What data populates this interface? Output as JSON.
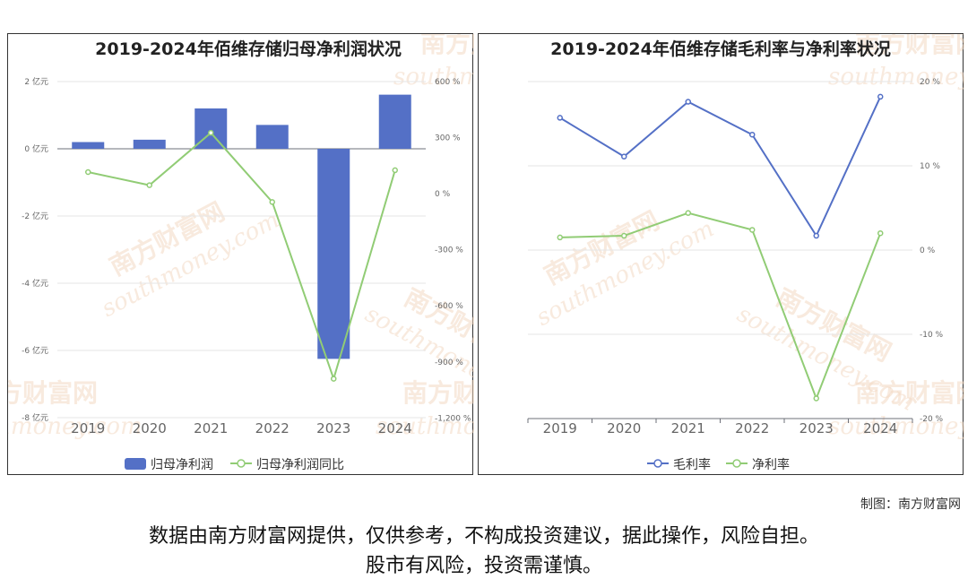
{
  "footer": {
    "credit": "制图：南方财富网",
    "disclaimer_line1": "数据由南方财富网提供，仅供参考，不构成投资建议，据此操作，风险自担。",
    "disclaimer_line2": "股市有风险，投资需谨慎。"
  },
  "watermark": {
    "cn": "南方财富网",
    "en": "southmoney.com"
  },
  "colors": {
    "bar": "#5470c6",
    "line_green": "#91cc75",
    "line_blue": "#5470c6"
  },
  "chart_data": [
    {
      "type": "bar",
      "title": "2019-2024年佰维存储归母净利润状况",
      "categories": [
        "2019",
        "2020",
        "2021",
        "2022",
        "2023",
        "2024"
      ],
      "series": [
        {
          "name": "归母净利润",
          "type": "bar",
          "axis": "left",
          "values": [
            0.2,
            0.27,
            1.2,
            0.71,
            -6.25,
            1.61
          ]
        },
        {
          "name": "归母净利润同比",
          "type": "line",
          "axis": "right",
          "values": [
            115,
            45,
            325,
            -45,
            -990,
            125
          ]
        }
      ],
      "y_left": {
        "ticks": [
          2,
          0,
          -2,
          -4,
          -6,
          -8
        ],
        "tick_labels": [
          "2 亿元",
          "0 亿元",
          "-2 亿元",
          "-4 亿元",
          "-6 亿元",
          "-8 亿元"
        ],
        "range": [
          -8,
          2
        ]
      },
      "y_right": {
        "ticks": [
          600,
          300,
          0,
          -300,
          -600,
          -900,
          -1200
        ],
        "tick_labels": [
          "600 %",
          "300 %",
          "0 %",
          "-300 %",
          "-600 %",
          "-900 %",
          "-1,200 %"
        ],
        "range": [
          -1200,
          600
        ]
      },
      "legend": "bottom"
    },
    {
      "type": "line",
      "title": "2019-2024年佰维存储毛利率与净利率状况",
      "categories": [
        "2019",
        "2020",
        "2021",
        "2022",
        "2023",
        "2024"
      ],
      "series": [
        {
          "name": "毛利率",
          "values": [
            15.7,
            11.1,
            17.6,
            13.7,
            1.7,
            18.2
          ]
        },
        {
          "name": "净利率",
          "values": [
            1.5,
            1.7,
            4.4,
            2.4,
            -17.6,
            2.0
          ]
        }
      ],
      "y_right": {
        "ticks": [
          20,
          10,
          0,
          -10,
          -20
        ],
        "tick_labels": [
          "20 %",
          "10 %",
          "0 %",
          "-10 %",
          "-20 %"
        ],
        "range": [
          -20,
          20
        ]
      },
      "legend": "bottom"
    }
  ]
}
